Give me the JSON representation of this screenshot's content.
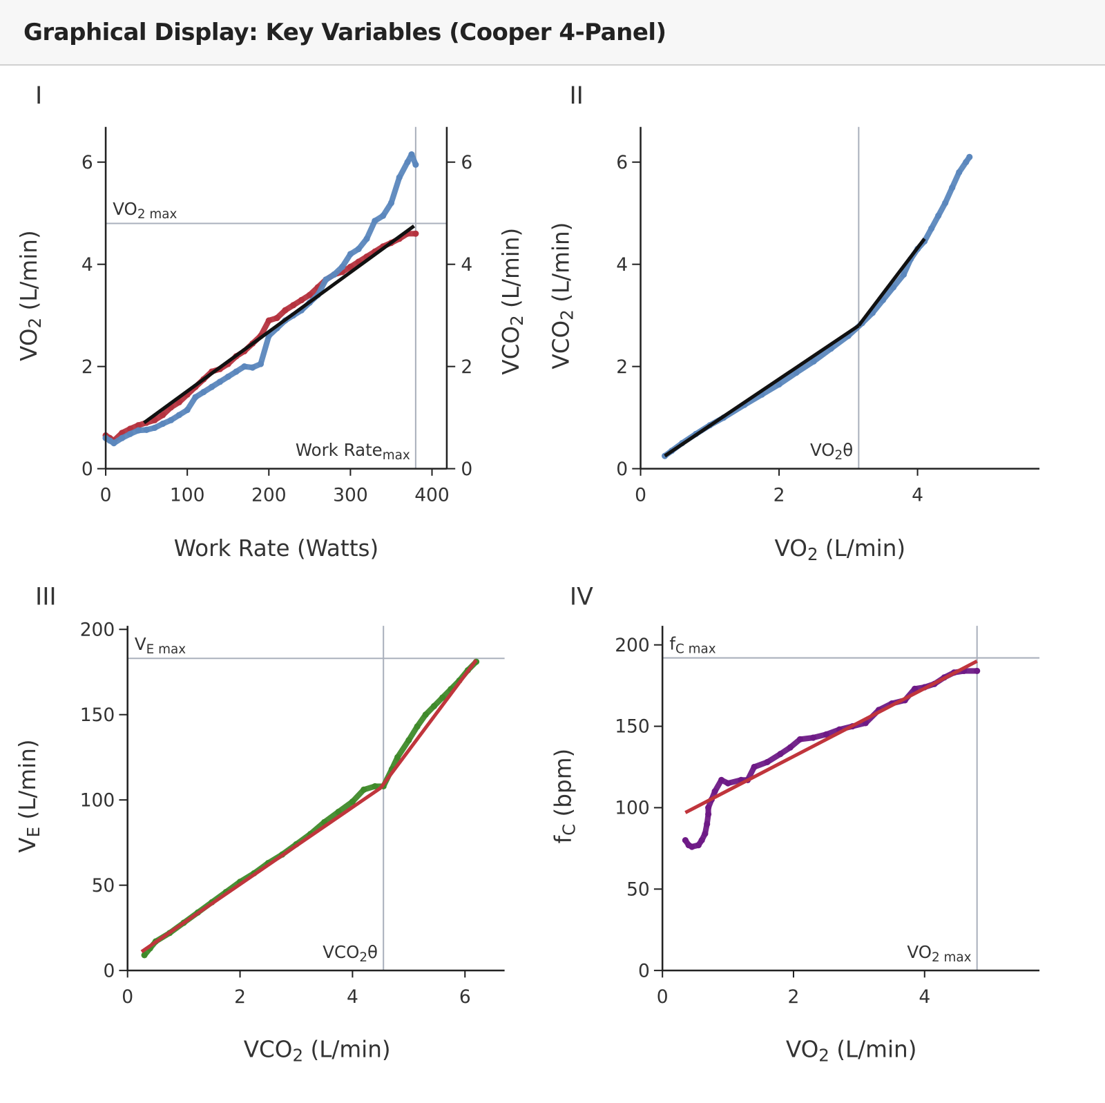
{
  "header": {
    "title": "Graphical Display: Key Variables (Cooper 4-Panel)"
  },
  "colors": {
    "vo2_red": "#b5333f",
    "vco2_blue": "#5b87bd",
    "ve_green": "#3f8a2a",
    "hr_purple": "#6e1a86",
    "fit_black": "#111111",
    "fit_red": "#c0353c",
    "reference": "#aab0bc"
  },
  "chart_data": [
    {
      "panel_label": "I",
      "type": "scatter",
      "xlabel": [
        [
          "Work Rate (Watts)",
          ""
        ]
      ],
      "ylabel": [
        [
          "VO",
          ""
        ],
        [
          "2",
          "sub"
        ],
        [
          " (L/min)",
          ""
        ]
      ],
      "y2label": [
        [
          "VCO",
          ""
        ],
        [
          "2",
          "sub"
        ],
        [
          " (L/min)",
          ""
        ]
      ],
      "xlim": [
        0,
        420
      ],
      "ylim": [
        0,
        6.7
      ],
      "xticks": [
        0,
        100,
        200,
        300,
        400
      ],
      "yticks": [
        0,
        2,
        4,
        6
      ],
      "y2ticks": [
        0,
        2,
        4,
        6
      ],
      "series": [
        {
          "color": "#b5333f",
          "points": [
            [
              0,
              0.65
            ],
            [
              5,
              0.6
            ],
            [
              10,
              0.55
            ],
            [
              20,
              0.7
            ],
            [
              30,
              0.78
            ],
            [
              40,
              0.85
            ],
            [
              50,
              0.9
            ],
            [
              60,
              0.95
            ],
            [
              70,
              1.05
            ],
            [
              80,
              1.2
            ],
            [
              90,
              1.3
            ],
            [
              100,
              1.45
            ],
            [
              110,
              1.6
            ],
            [
              120,
              1.75
            ],
            [
              130,
              1.9
            ],
            [
              140,
              1.95
            ],
            [
              150,
              2.05
            ],
            [
              160,
              2.2
            ],
            [
              170,
              2.3
            ],
            [
              180,
              2.45
            ],
            [
              190,
              2.6
            ],
            [
              200,
              2.9
            ],
            [
              210,
              2.95
            ],
            [
              220,
              3.1
            ],
            [
              230,
              3.2
            ],
            [
              240,
              3.3
            ],
            [
              250,
              3.4
            ],
            [
              260,
              3.55
            ],
            [
              270,
              3.7
            ],
            [
              280,
              3.8
            ],
            [
              290,
              3.85
            ],
            [
              300,
              3.95
            ],
            [
              310,
              4.05
            ],
            [
              320,
              4.15
            ],
            [
              330,
              4.25
            ],
            [
              340,
              4.35
            ],
            [
              350,
              4.42
            ],
            [
              360,
              4.5
            ],
            [
              370,
              4.6
            ],
            [
              380,
              4.6
            ]
          ]
        },
        {
          "color": "#5b87bd",
          "points": [
            [
              0,
              0.6
            ],
            [
              5,
              0.55
            ],
            [
              10,
              0.5
            ],
            [
              20,
              0.6
            ],
            [
              30,
              0.68
            ],
            [
              40,
              0.75
            ],
            [
              50,
              0.76
            ],
            [
              60,
              0.8
            ],
            [
              70,
              0.88
            ],
            [
              80,
              0.95
            ],
            [
              90,
              1.05
            ],
            [
              100,
              1.15
            ],
            [
              110,
              1.4
            ],
            [
              120,
              1.5
            ],
            [
              130,
              1.6
            ],
            [
              140,
              1.7
            ],
            [
              150,
              1.8
            ],
            [
              160,
              1.9
            ],
            [
              170,
              2.0
            ],
            [
              180,
              1.98
            ],
            [
              190,
              2.05
            ],
            [
              200,
              2.6
            ],
            [
              210,
              2.75
            ],
            [
              220,
              2.9
            ],
            [
              230,
              3.0
            ],
            [
              240,
              3.1
            ],
            [
              250,
              3.25
            ],
            [
              260,
              3.4
            ],
            [
              270,
              3.7
            ],
            [
              280,
              3.8
            ],
            [
              290,
              3.95
            ],
            [
              300,
              4.2
            ],
            [
              310,
              4.3
            ],
            [
              320,
              4.5
            ],
            [
              330,
              4.85
            ],
            [
              340,
              4.95
            ],
            [
              350,
              5.2
            ],
            [
              360,
              5.7
            ],
            [
              370,
              6.0
            ],
            [
              375,
              6.15
            ],
            [
              380,
              5.95
            ]
          ]
        }
      ],
      "fits": [
        {
          "color": "#111111",
          "points": [
            [
              47,
              0.9
            ],
            [
              378,
              4.75
            ]
          ]
        }
      ],
      "refs": [
        {
          "axis": "y",
          "value": 4.8,
          "label": [
            [
              "VO",
              ""
            ],
            [
              "2 max",
              "sub"
            ]
          ],
          "anchor": "top-left"
        },
        {
          "axis": "x",
          "value": 380,
          "label": [
            [
              "Work Rate",
              ""
            ],
            [
              "max",
              "sub"
            ]
          ],
          "anchor": "bottom-left"
        }
      ]
    },
    {
      "panel_label": "II",
      "type": "scatter",
      "xlabel": [
        [
          "VO",
          ""
        ],
        [
          "2",
          "sub"
        ],
        [
          " (L/min)",
          ""
        ]
      ],
      "ylabel": [
        [
          "VCO",
          ""
        ],
        [
          "2",
          "sub"
        ],
        [
          " (L/min)",
          ""
        ]
      ],
      "xlim": [
        0,
        5.8
      ],
      "ylim": [
        0,
        6.7
      ],
      "xticks": [
        0,
        2,
        4
      ],
      "yticks": [
        0,
        2,
        4,
        6
      ],
      "series": [
        {
          "color": "#5b87bd",
          "points": [
            [
              0.35,
              0.25
            ],
            [
              0.45,
              0.35
            ],
            [
              0.6,
              0.5
            ],
            [
              0.8,
              0.68
            ],
            [
              1.0,
              0.85
            ],
            [
              1.2,
              1.0
            ],
            [
              1.5,
              1.25
            ],
            [
              1.75,
              1.45
            ],
            [
              2.0,
              1.65
            ],
            [
              2.25,
              1.88
            ],
            [
              2.5,
              2.1
            ],
            [
              2.75,
              2.35
            ],
            [
              3.0,
              2.6
            ],
            [
              3.2,
              2.85
            ],
            [
              3.35,
              3.05
            ],
            [
              3.5,
              3.3
            ],
            [
              3.65,
              3.55
            ],
            [
              3.8,
              3.8
            ],
            [
              3.9,
              4.1
            ],
            [
              4.0,
              4.3
            ],
            [
              4.1,
              4.45
            ],
            [
              4.2,
              4.7
            ],
            [
              4.3,
              4.95
            ],
            [
              4.4,
              5.2
            ],
            [
              4.5,
              5.5
            ],
            [
              4.6,
              5.8
            ],
            [
              4.7,
              6.0
            ],
            [
              4.75,
              6.1
            ]
          ]
        }
      ],
      "fits": [
        {
          "color": "#111111",
          "points": [
            [
              0.35,
              0.25
            ],
            [
              3.15,
              2.8
            ]
          ]
        },
        {
          "color": "#111111",
          "points": [
            [
              3.15,
              2.8
            ],
            [
              4.1,
              4.5
            ]
          ]
        }
      ],
      "refs": [
        {
          "axis": "x",
          "value": 3.15,
          "label": [
            [
              "VO",
              ""
            ],
            [
              "2",
              "sub"
            ],
            [
              "θ",
              ""
            ]
          ],
          "anchor": "bottom-left"
        }
      ]
    },
    {
      "panel_label": "III",
      "type": "scatter",
      "xlabel": [
        [
          "VCO",
          ""
        ],
        [
          "2",
          "sub"
        ],
        [
          " (L/min)",
          ""
        ]
      ],
      "ylabel": [
        [
          "V",
          ""
        ],
        [
          "E",
          "sub"
        ],
        [
          " (L/min)",
          ""
        ]
      ],
      "xlim": [
        0,
        6.7
      ],
      "ylim": [
        0,
        200
      ],
      "xticks": [
        0,
        2,
        4,
        6
      ],
      "yticks": [
        0,
        50,
        100,
        150,
        200
      ],
      "series": [
        {
          "color": "#3f8a2a",
          "points": [
            [
              0.3,
              9
            ],
            [
              0.4,
              13
            ],
            [
              0.5,
              17
            ],
            [
              0.75,
              22
            ],
            [
              1.0,
              28
            ],
            [
              1.25,
              34
            ],
            [
              1.5,
              40
            ],
            [
              1.75,
              46
            ],
            [
              2.0,
              52
            ],
            [
              2.25,
              57
            ],
            [
              2.5,
              63
            ],
            [
              2.75,
              68
            ],
            [
              3.0,
              74
            ],
            [
              3.25,
              80
            ],
            [
              3.5,
              87
            ],
            [
              3.75,
              93
            ],
            [
              4.0,
              99
            ],
            [
              4.2,
              106
            ],
            [
              4.4,
              108
            ],
            [
              4.55,
              108
            ],
            [
              4.7,
              118
            ],
            [
              4.8,
              125
            ],
            [
              5.0,
              135
            ],
            [
              5.15,
              143
            ],
            [
              5.3,
              150
            ],
            [
              5.45,
              155
            ],
            [
              5.6,
              160
            ],
            [
              5.75,
              165
            ],
            [
              5.9,
              170
            ],
            [
              6.05,
              176
            ],
            [
              6.2,
              181
            ]
          ]
        }
      ],
      "fits": [
        {
          "color": "#c0353c",
          "points": [
            [
              0.25,
              11
            ],
            [
              4.5,
              107
            ]
          ]
        },
        {
          "color": "#c0353c",
          "points": [
            [
              4.5,
              107
            ],
            [
              6.2,
              182
            ]
          ]
        }
      ],
      "refs": [
        {
          "axis": "y",
          "value": 183,
          "label": [
            [
              "V",
              ""
            ],
            [
              "E max",
              "sub"
            ]
          ],
          "anchor": "top-left"
        },
        {
          "axis": "x",
          "value": 4.55,
          "label": [
            [
              "VCO",
              ""
            ],
            [
              "2",
              "sub"
            ],
            [
              "θ",
              ""
            ]
          ],
          "anchor": "bottom-left"
        }
      ]
    },
    {
      "panel_label": "IV",
      "type": "scatter",
      "xlabel": [
        [
          "VO",
          ""
        ],
        [
          "2",
          "sub"
        ],
        [
          " (L/min)",
          ""
        ]
      ],
      "ylabel": [
        [
          "f",
          ""
        ],
        [
          "C",
          "sub"
        ],
        [
          " (bpm)",
          ""
        ]
      ],
      "xlim": [
        0,
        5.8
      ],
      "ylim": [
        0,
        210
      ],
      "xticks": [
        0,
        2,
        4
      ],
      "yticks": [
        0,
        50,
        100,
        150,
        200
      ],
      "series": [
        {
          "color": "#6e1a86",
          "points": [
            [
              0.35,
              80
            ],
            [
              0.4,
              77
            ],
            [
              0.45,
              76
            ],
            [
              0.55,
              77
            ],
            [
              0.6,
              80
            ],
            [
              0.65,
              84
            ],
            [
              0.68,
              90
            ],
            [
              0.7,
              96
            ],
            [
              0.7,
              100
            ],
            [
              0.75,
              105
            ],
            [
              0.8,
              110
            ],
            [
              0.9,
              117
            ],
            [
              1.0,
              115
            ],
            [
              1.2,
              117
            ],
            [
              1.3,
              117
            ],
            [
              1.4,
              125
            ],
            [
              1.6,
              128
            ],
            [
              1.8,
              133
            ],
            [
              1.95,
              137
            ],
            [
              2.1,
              142
            ],
            [
              2.3,
              143
            ],
            [
              2.5,
              145
            ],
            [
              2.7,
              148
            ],
            [
              2.9,
              150
            ],
            [
              3.1,
              152
            ],
            [
              3.3,
              160
            ],
            [
              3.5,
              164
            ],
            [
              3.7,
              166
            ],
            [
              3.85,
              173
            ],
            [
              4.0,
              174
            ],
            [
              4.15,
              176
            ],
            [
              4.3,
              180
            ],
            [
              4.45,
              183
            ],
            [
              4.6,
              184
            ],
            [
              4.8,
              184
            ]
          ]
        }
      ],
      "fits": [
        {
          "color": "#c0353c",
          "points": [
            [
              0.35,
              97
            ],
            [
              4.8,
              190
            ]
          ]
        }
      ],
      "refs": [
        {
          "axis": "y",
          "value": 192,
          "label": [
            [
              "f",
              ""
            ],
            [
              "C max",
              "sub"
            ]
          ],
          "anchor": "top-left"
        },
        {
          "axis": "x",
          "value": 4.8,
          "label": [
            [
              "VO",
              ""
            ],
            [
              "2 max",
              "sub"
            ]
          ],
          "anchor": "bottom-left"
        }
      ]
    }
  ]
}
